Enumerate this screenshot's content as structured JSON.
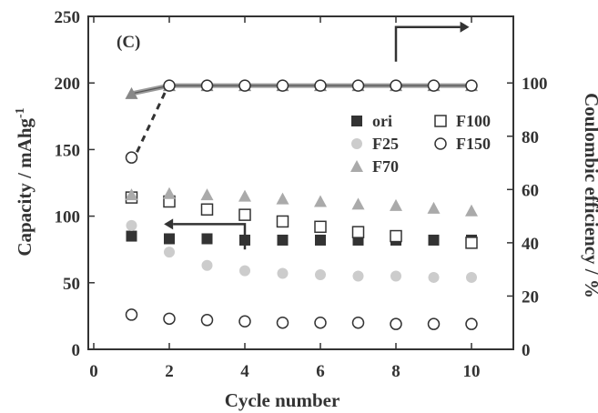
{
  "chart_data": {
    "type": "scatter",
    "panel_label": "(C)",
    "xlabel": "Cycle number",
    "ylabel_main": "Capacity / mAhg",
    "ylabel_sup": "-1",
    "y2label": "Coulombic efficiency / %",
    "xlim": [
      0,
      11
    ],
    "ylim": [
      0,
      250
    ],
    "y2lim": [
      0,
      125
    ],
    "x_ticks": [
      "0",
      "2",
      "4",
      "6",
      "8",
      "10"
    ],
    "y_ticks": [
      "0",
      "50",
      "100",
      "150",
      "200",
      "250"
    ],
    "y2_ticks": [
      "0",
      "20",
      "40",
      "60",
      "80",
      "100"
    ],
    "grid": false,
    "legend_position": "right-center",
    "series": [
      {
        "name": "ori",
        "marker": "square-filled",
        "color": "#333333",
        "x": [
          1,
          2,
          3,
          4,
          5,
          6,
          7,
          8,
          9,
          10
        ],
        "y": [
          85,
          83,
          83,
          82,
          82,
          82,
          82,
          82,
          82,
          82
        ]
      },
      {
        "name": "F100",
        "marker": "square-open",
        "color": "#333333",
        "x": [
          1,
          2,
          3,
          4,
          5,
          6,
          7,
          8,
          9,
          10
        ],
        "y": [
          114,
          111,
          105,
          101,
          96,
          92,
          88,
          85,
          null,
          80
        ]
      },
      {
        "name": "F25",
        "marker": "circle-filled",
        "color": "#cccccc",
        "x": [
          1,
          2,
          3,
          4,
          5,
          6,
          7,
          8,
          9,
          10
        ],
        "y": [
          93,
          73,
          63,
          59,
          57,
          56,
          55,
          55,
          54,
          54
        ]
      },
      {
        "name": "F150",
        "marker": "circle-open",
        "color": "#333333",
        "x": [
          1,
          2,
          3,
          4,
          5,
          6,
          7,
          8,
          9,
          10
        ],
        "y": [
          26,
          23,
          22,
          21,
          20,
          20,
          20,
          19,
          19,
          19
        ]
      },
      {
        "name": "F70",
        "marker": "triangle-filled",
        "color": "#aaaaaa",
        "x": [
          1,
          2,
          3,
          4,
          5,
          6,
          7,
          8,
          9,
          10
        ],
        "y": [
          116,
          117,
          116,
          115,
          113,
          111,
          109,
          108,
          106,
          104
        ]
      }
    ],
    "coulombic_efficiency": {
      "axis": "right",
      "x": [
        1,
        2,
        3,
        4,
        5,
        6,
        7,
        8,
        9,
        10
      ],
      "y_main": [
        96,
        99,
        99,
        99,
        99,
        99,
        99,
        99,
        99,
        99
      ],
      "y_F150_start": 72
    },
    "arrows": [
      {
        "points_to": "left-axis",
        "x_from": 4,
        "y_from": 75,
        "x_corner": 4,
        "y_corner": 94,
        "x_to": 2.1,
        "y_to": 94
      },
      {
        "points_to": "right-axis",
        "x_from": 8,
        "y_from": 108,
        "x_corner": 8,
        "y_corner": 121,
        "x_to": 9.7,
        "y_to": 121
      }
    ]
  }
}
